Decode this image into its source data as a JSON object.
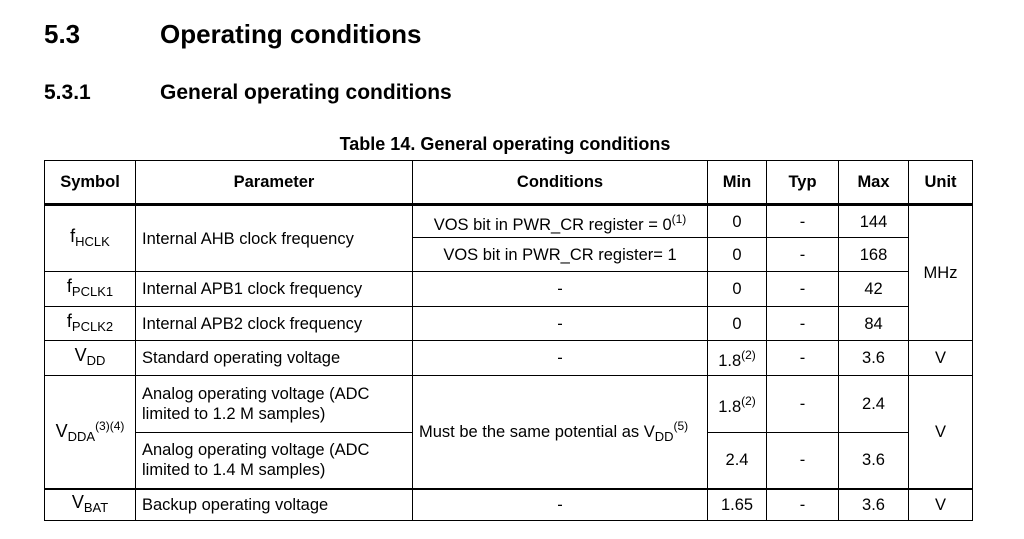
{
  "section": {
    "number": "5.3",
    "title": "Operating conditions"
  },
  "subsection": {
    "number": "5.3.1",
    "title": "General operating conditions"
  },
  "table": {
    "caption": "Table 14. General operating conditions",
    "headers": [
      "Symbol",
      "Parameter",
      "Conditions",
      "Min",
      "Typ",
      "Max",
      "Unit"
    ],
    "rows": [
      {
        "sym": "f",
        "sub": "HCLK",
        "param": "Internal AHB clock frequency",
        "cond": "VOS bit in PWR_CR register = 0",
        "cond_sup": "(1)",
        "min": "0",
        "typ": "-",
        "max": "144",
        "unit": "MHz"
      },
      {
        "cond": "VOS bit in PWR_CR register= 1",
        "min": "0",
        "typ": "-",
        "max": "168"
      },
      {
        "sym": "f",
        "sub": "PCLK1",
        "param": "Internal APB1 clock frequency",
        "cond": "-",
        "min": "0",
        "typ": "-",
        "max": "42"
      },
      {
        "sym": "f",
        "sub": "PCLK2",
        "param": "Internal APB2 clock frequency",
        "cond": "-",
        "min": "0",
        "typ": "-",
        "max": "84"
      },
      {
        "sym": "V",
        "sub": "DD",
        "param": "Standard operating voltage",
        "cond": "-",
        "min": "1.8",
        "min_sup": "(2)",
        "typ": "-",
        "max": "3.6",
        "unit": "V"
      },
      {
        "sym": "V",
        "sub": "DDA",
        "sym_sup": "(3)(4)",
        "param": "Analog operating voltage (ADC limited to 1.2 M samples)",
        "cond": "Must be the same potential as V",
        "cond_sub": "DD",
        "cond_sup": "(5)",
        "min": "1.8",
        "min_sup": "(2)",
        "typ": "-",
        "max": "2.4",
        "unit": "V"
      },
      {
        "param": "Analog operating voltage (ADC limited to 1.4 M samples)",
        "min": "2.4",
        "typ": "-",
        "max": "3.6"
      },
      {
        "sym": "V",
        "sub": "BAT",
        "param": "Backup operating voltage",
        "cond": "-",
        "min": "1.65",
        "typ": "-",
        "max": "3.6",
        "unit": "V"
      }
    ]
  }
}
